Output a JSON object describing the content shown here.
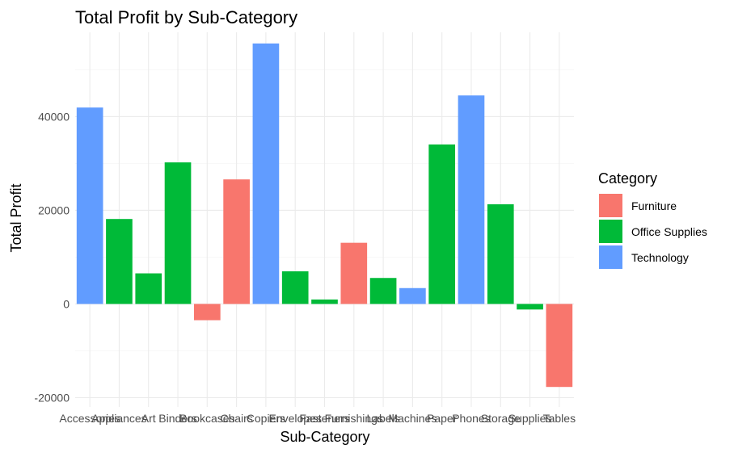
{
  "chart_data": {
    "type": "bar",
    "title": "Total Profit by Sub-Category",
    "xlabel": "Sub-Category",
    "ylabel": "Total Profit",
    "ylim": [
      -22000,
      58000
    ],
    "yticks": [
      -20000,
      0,
      20000,
      40000
    ],
    "ytick_labels": [
      "-20000",
      "0",
      "20000",
      "40000"
    ],
    "grid": true,
    "legend_position": "right",
    "legend_title": "Category",
    "legend": [
      {
        "name": "Furniture",
        "color": "#F8766D"
      },
      {
        "name": "Office Supplies",
        "color": "#00BA38"
      },
      {
        "name": "Technology",
        "color": "#619CFF"
      }
    ],
    "categories": [
      "Accessories",
      "Appliances",
      "Art",
      "Binders",
      "Bookcases",
      "Chairs",
      "Copiers",
      "Envelopes",
      "Fasteners",
      "Furnishings",
      "Labels",
      "Machines",
      "Paper",
      "Phones",
      "Storage",
      "Supplies",
      "Tables"
    ],
    "bar_category": [
      "Technology",
      "Office Supplies",
      "Office Supplies",
      "Office Supplies",
      "Furniture",
      "Furniture",
      "Technology",
      "Office Supplies",
      "Office Supplies",
      "Furniture",
      "Office Supplies",
      "Technology",
      "Office Supplies",
      "Technology",
      "Office Supplies",
      "Office Supplies",
      "Furniture"
    ],
    "values": [
      41937,
      18138,
      6528,
      30222,
      -3473,
      26590,
      55618,
      6964,
      950,
      13059,
      5546,
      3385,
      34054,
      44516,
      21279,
      -1189,
      -17725
    ]
  }
}
